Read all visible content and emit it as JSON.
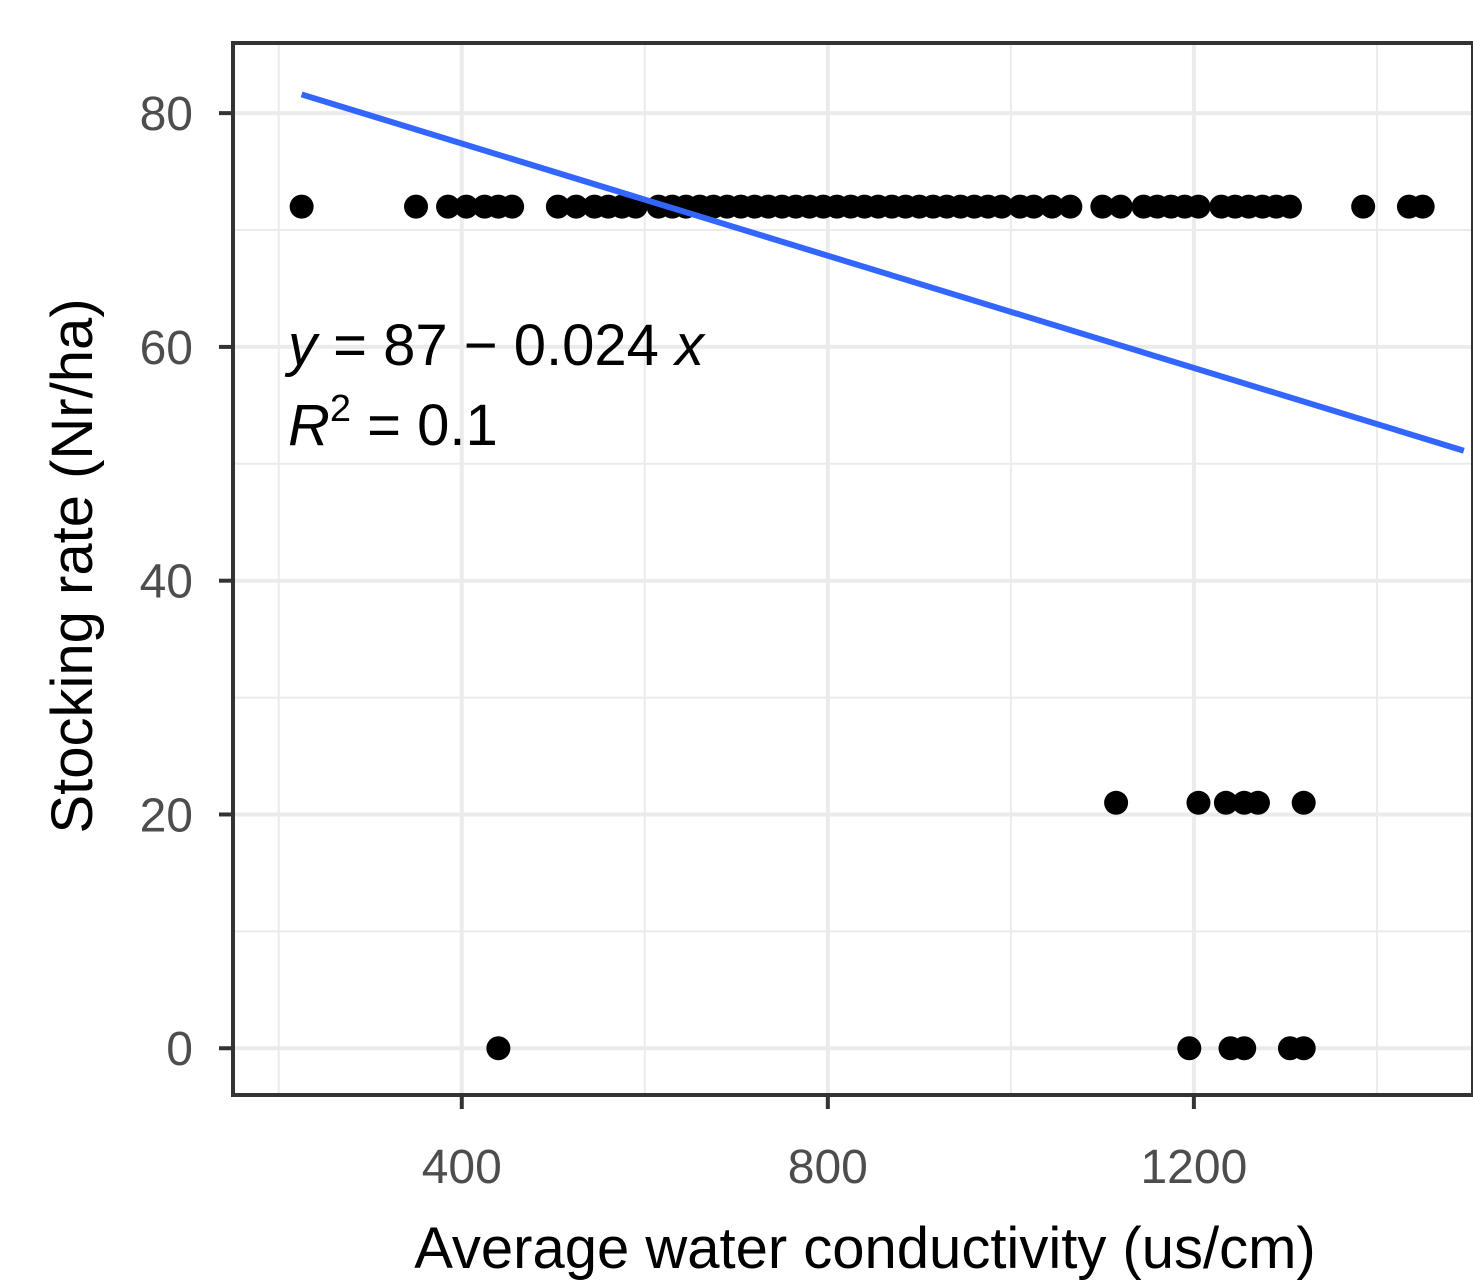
{
  "chart_data": {
    "type": "scatter",
    "title": "",
    "xlabel": "Average water conductivity (us/cm)",
    "ylabel": "Stocking rate (Nr/ha)",
    "xlim": [
      150,
      1505
    ],
    "ylim": [
      -4,
      86
    ],
    "x_ticks": [
      400,
      800,
      1200
    ],
    "y_ticks": [
      0,
      20,
      40,
      60,
      80
    ],
    "grid": true,
    "colors": {
      "points": "#000000",
      "line": "#3366FF",
      "grid": "#EBEBEB",
      "border": "#333333"
    },
    "series": [
      {
        "values": [
          {
            "x": 225,
            "y": 72
          },
          {
            "x": 350,
            "y": 72
          },
          {
            "x": 385,
            "y": 72
          },
          {
            "x": 405,
            "y": 72
          },
          {
            "x": 425,
            "y": 72
          },
          {
            "x": 440,
            "y": 72
          },
          {
            "x": 455,
            "y": 72
          },
          {
            "x": 505,
            "y": 72
          },
          {
            "x": 525,
            "y": 72
          },
          {
            "x": 545,
            "y": 72
          },
          {
            "x": 560,
            "y": 72
          },
          {
            "x": 575,
            "y": 72
          },
          {
            "x": 590,
            "y": 72
          },
          {
            "x": 615,
            "y": 72
          },
          {
            "x": 630,
            "y": 72
          },
          {
            "x": 645,
            "y": 72
          },
          {
            "x": 660,
            "y": 72
          },
          {
            "x": 675,
            "y": 72
          },
          {
            "x": 690,
            "y": 72
          },
          {
            "x": 705,
            "y": 72
          },
          {
            "x": 720,
            "y": 72
          },
          {
            "x": 735,
            "y": 72
          },
          {
            "x": 750,
            "y": 72
          },
          {
            "x": 765,
            "y": 72
          },
          {
            "x": 780,
            "y": 72
          },
          {
            "x": 795,
            "y": 72
          },
          {
            "x": 810,
            "y": 72
          },
          {
            "x": 825,
            "y": 72
          },
          {
            "x": 840,
            "y": 72
          },
          {
            "x": 855,
            "y": 72
          },
          {
            "x": 870,
            "y": 72
          },
          {
            "x": 885,
            "y": 72
          },
          {
            "x": 900,
            "y": 72
          },
          {
            "x": 915,
            "y": 72
          },
          {
            "x": 930,
            "y": 72
          },
          {
            "x": 945,
            "y": 72
          },
          {
            "x": 960,
            "y": 72
          },
          {
            "x": 975,
            "y": 72
          },
          {
            "x": 990,
            "y": 72
          },
          {
            "x": 1010,
            "y": 72
          },
          {
            "x": 1025,
            "y": 72
          },
          {
            "x": 1045,
            "y": 72
          },
          {
            "x": 1065,
            "y": 72
          },
          {
            "x": 1100,
            "y": 72
          },
          {
            "x": 1120,
            "y": 72
          },
          {
            "x": 1145,
            "y": 72
          },
          {
            "x": 1160,
            "y": 72
          },
          {
            "x": 1175,
            "y": 72
          },
          {
            "x": 1190,
            "y": 72
          },
          {
            "x": 1205,
            "y": 72
          },
          {
            "x": 1230,
            "y": 72
          },
          {
            "x": 1245,
            "y": 72
          },
          {
            "x": 1260,
            "y": 72
          },
          {
            "x": 1275,
            "y": 72
          },
          {
            "x": 1290,
            "y": 72
          },
          {
            "x": 1305,
            "y": 72
          },
          {
            "x": 1385,
            "y": 72
          },
          {
            "x": 1435,
            "y": 72
          },
          {
            "x": 1450,
            "y": 72
          },
          {
            "x": 1115,
            "y": 21
          },
          {
            "x": 1205,
            "y": 21
          },
          {
            "x": 1235,
            "y": 21
          },
          {
            "x": 1255,
            "y": 21
          },
          {
            "x": 1270,
            "y": 21
          },
          {
            "x": 1320,
            "y": 21
          },
          {
            "x": 440,
            "y": 0
          },
          {
            "x": 1195,
            "y": 0
          },
          {
            "x": 1240,
            "y": 0
          },
          {
            "x": 1255,
            "y": 0
          },
          {
            "x": 1305,
            "y": 0
          },
          {
            "x": 1320,
            "y": 0
          }
        ]
      }
    ],
    "trendline": {
      "intercept": 87,
      "slope": -0.024,
      "x_range": [
        225,
        1495
      ]
    },
    "annotation": {
      "equation": {
        "y_var": "y",
        "eq_sign": " = ",
        "intercept": "87",
        "operator": " − ",
        "coef": "0.024",
        "x_var": "x"
      },
      "r2": {
        "r_var": "R",
        "exponent": "2",
        "eq_sign": " = ",
        "value": "0.1"
      }
    }
  }
}
